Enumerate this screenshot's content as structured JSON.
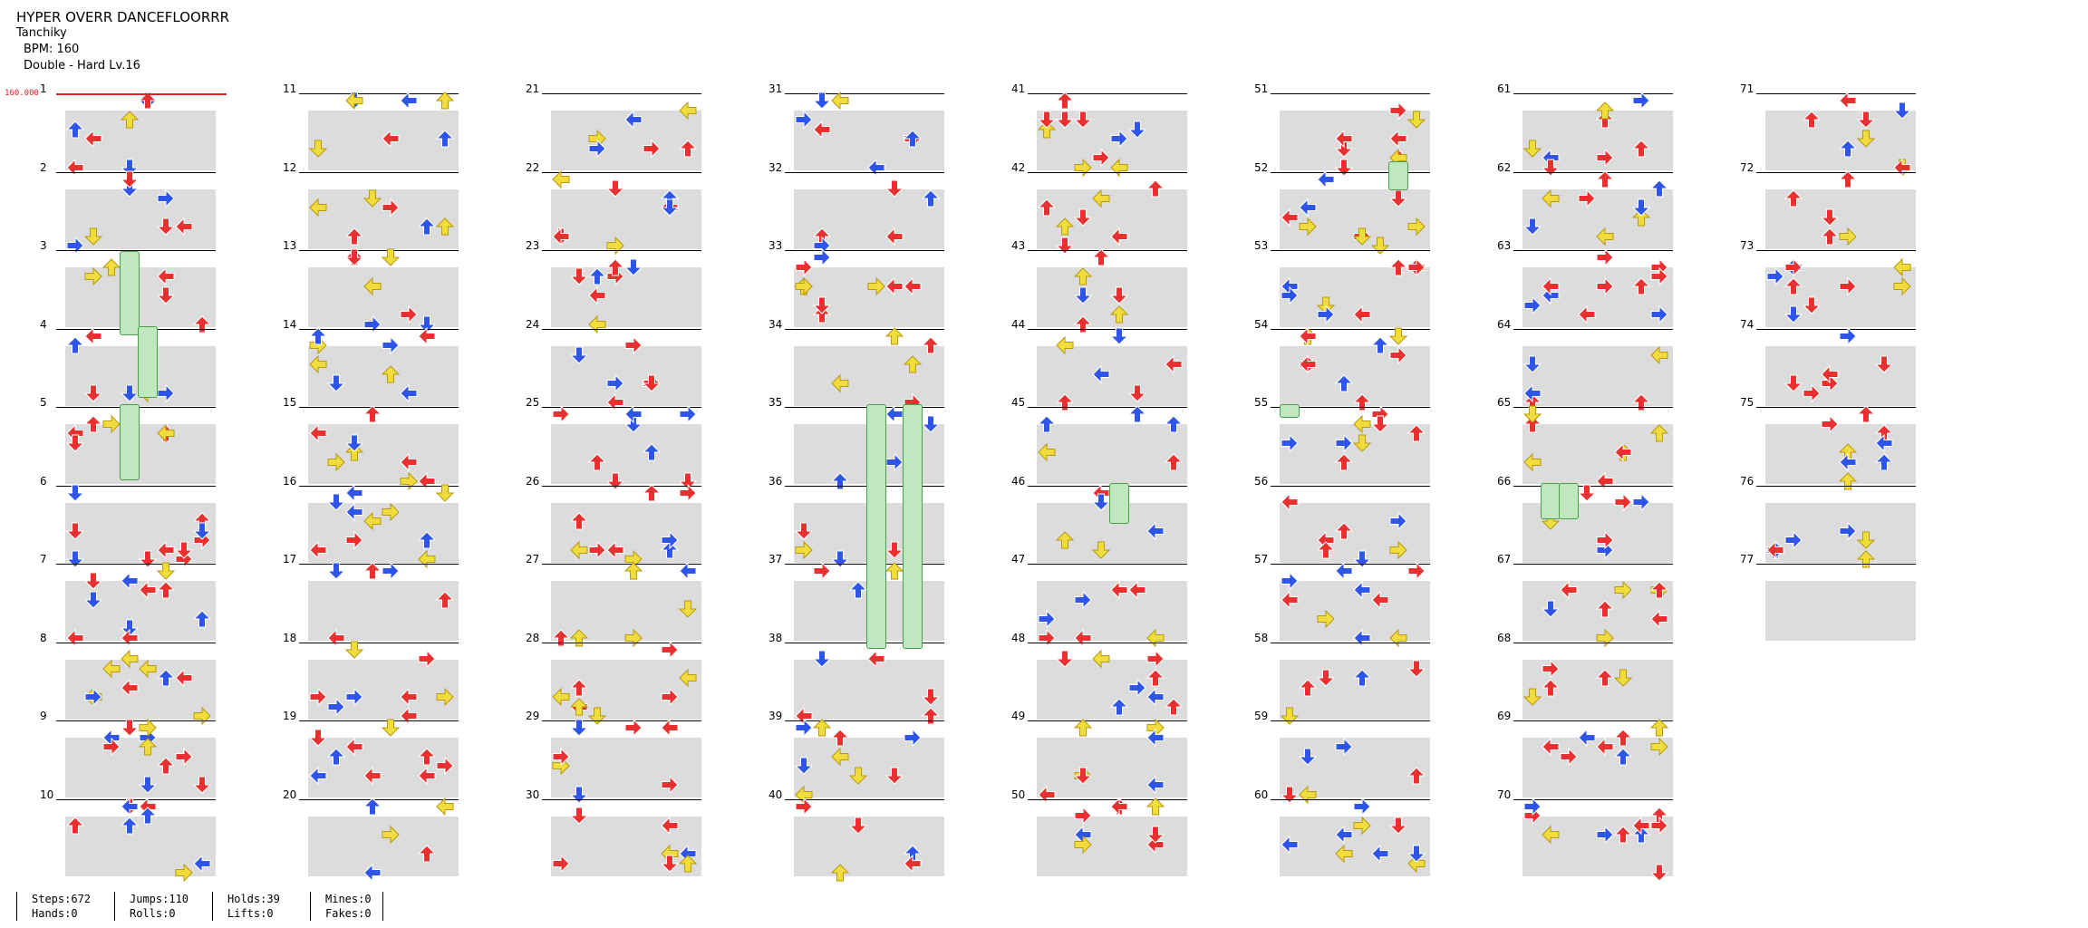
{
  "song": {
    "title": "HYPER OVERR DANCEFLOORRR",
    "artist": "Tanchiky",
    "bpm_line": "BPM: 160",
    "difficulty_line": "Double - Hard  Lv.16",
    "bpm_marker": "160.000"
  },
  "measures": [
    "1",
    "2",
    "3",
    "4",
    "5",
    "6",
    "7",
    "8",
    "9",
    "10",
    "11",
    "12",
    "13",
    "14",
    "15",
    "16",
    "17",
    "18",
    "19",
    "20",
    "21",
    "22",
    "23",
    "24",
    "25",
    "26",
    "27",
    "28",
    "29",
    "30",
    "31",
    "32",
    "33",
    "34",
    "35",
    "36",
    "37",
    "38",
    "39",
    "40",
    "41",
    "42",
    "43",
    "44",
    "45",
    "46",
    "47",
    "48",
    "49",
    "50",
    "51",
    "52",
    "53",
    "54",
    "55",
    "56",
    "57",
    "58",
    "59",
    "60",
    "61",
    "62",
    "63",
    "64",
    "65",
    "66",
    "67",
    "68",
    "69",
    "70",
    "71",
    "72",
    "73",
    "74",
    "75",
    "76",
    "77"
  ],
  "stats": [
    {
      "line1": "Steps:672",
      "line2": "Hands:0"
    },
    {
      "line1": "Jumps:110",
      "line2": "Rolls:0"
    },
    {
      "line1": "Holds:39",
      "line2": "Lifts:0"
    },
    {
      "line1": "Mines:0",
      "line2": "Fakes:0"
    }
  ],
  "colors": {
    "red": "#e83030",
    "blue": "#2f55e8",
    "yellow": "#f0dc3c",
    "purple": "#b040e0",
    "hold_green": "#bfe8bf",
    "bpm_red": "#e02020"
  }
}
